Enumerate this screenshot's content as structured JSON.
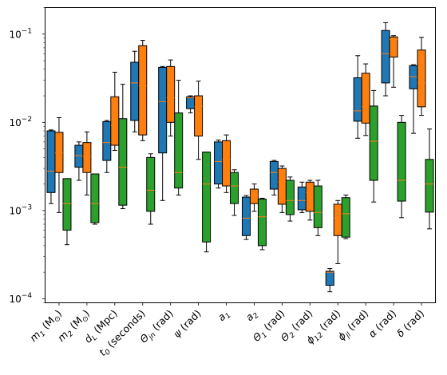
{
  "chart_data": {
    "type": "boxplot",
    "title": "",
    "xlabel": "",
    "ylabel": "",
    "yscale": "log",
    "ylim": [
      9e-05,
      0.2
    ],
    "y_ticks": [
      {
        "value": 0.0001,
        "base": "10",
        "exp": "−4"
      },
      {
        "value": 0.001,
        "base": "10",
        "exp": "−3"
      },
      {
        "value": 0.01,
        "base": "10",
        "exp": "−2"
      },
      {
        "value": 0.1,
        "base": "10",
        "exp": "−1"
      }
    ],
    "categories": [
      "m₁ (M☉)",
      "m₂ (M☉)",
      "d_L (Mpc)",
      "t₀ (seconds)",
      "Θ_jn (rad)",
      "ψ (rad)",
      "a₁",
      "a₂",
      "Θ₁ (rad)",
      "Θ₂ (rad)",
      "ϕ₁₂ (rad)",
      "ϕ_jl (rad)",
      "α (rad)",
      "δ (rad)"
    ],
    "category_labels": [
      {
        "main": "m",
        "sub": "1",
        "tail": " (M",
        "tail_sub": "⊙",
        "end": ")"
      },
      {
        "main": "m",
        "sub": "2",
        "tail": " (M",
        "tail_sub": "⊙",
        "end": ")"
      },
      {
        "main": "d",
        "sub": "L",
        "tail": " (Mpc)",
        "tail_sub": "",
        "end": ""
      },
      {
        "main": "t",
        "sub": "0",
        "tail": " (seconds)",
        "tail_sub": "",
        "end": ""
      },
      {
        "main": "Θ",
        "sub": "jn",
        "tail": " (rad)",
        "tail_sub": "",
        "end": ""
      },
      {
        "main": "ψ",
        "sub": "",
        "tail": " (rad)",
        "tail_sub": "",
        "end": ""
      },
      {
        "main": "a",
        "sub": "1",
        "tail": "",
        "tail_sub": "",
        "end": ""
      },
      {
        "main": "a",
        "sub": "2",
        "tail": "",
        "tail_sub": "",
        "end": ""
      },
      {
        "main": "Θ",
        "sub": "1",
        "tail": " (rad)",
        "tail_sub": "",
        "end": ""
      },
      {
        "main": "Θ",
        "sub": "2",
        "tail": " (rad)",
        "tail_sub": "",
        "end": ""
      },
      {
        "main": "ϕ",
        "sub": "12",
        "tail": " (rad)",
        "tail_sub": "",
        "end": ""
      },
      {
        "main": "ϕ",
        "sub": "jl",
        "tail": " (rad)",
        "tail_sub": "",
        "end": ""
      },
      {
        "main": "α",
        "sub": "",
        "tail": " (rad)",
        "tail_sub": "",
        "end": ""
      },
      {
        "main": "δ",
        "sub": "",
        "tail": " (rad)",
        "tail_sub": "",
        "end": ""
      }
    ],
    "grid": false,
    "legend": "none",
    "median_color": "#ff7f0e",
    "series": [
      {
        "color": "#1f77b4",
        "boxes": [
          {
            "whislo": 0.0012,
            "q1": 0.0016,
            "med": 0.0028,
            "q3": 0.008,
            "whishi": 0.0082
          },
          {
            "whislo": 0.0022,
            "q1": 0.0031,
            "med": 0.0042,
            "q3": 0.0055,
            "whishi": 0.006
          },
          {
            "whislo": 0.0027,
            "q1": 0.0037,
            "med": 0.0059,
            "q3": 0.0102,
            "whishi": 0.0105
          },
          {
            "whislo": 0.0078,
            "q1": 0.0105,
            "med": 0.028,
            "q3": 0.048,
            "whishi": 0.064
          },
          {
            "whislo": 0.0013,
            "q1": 0.0045,
            "med": 0.0172,
            "q3": 0.042,
            "whishi": 0.043
          },
          {
            "whislo": 0.0128,
            "q1": 0.0143,
            "med": 0.019,
            "q3": 0.0195,
            "whishi": 0.02
          },
          {
            "whislo": 0.0018,
            "q1": 0.002,
            "med": 0.0036,
            "q3": 0.006,
            "whishi": 0.0063
          },
          {
            "whislo": 0.00047,
            "q1": 0.00052,
            "med": 0.00082,
            "q3": 0.00142,
            "whishi": 0.00148
          },
          {
            "whislo": 0.0015,
            "q1": 0.00175,
            "med": 0.0027,
            "q3": 0.0036,
            "whishi": 0.0037
          },
          {
            "whislo": 0.00095,
            "q1": 0.00102,
            "med": 0.0013,
            "q3": 0.00185,
            "whishi": 0.0021
          },
          {
            "whislo": 0.00012,
            "q1": 0.000142,
            "med": 0.0002,
            "q3": 0.000205,
            "whishi": 0.00022
          },
          {
            "whislo": 0.0066,
            "q1": 0.0103,
            "med": 0.0135,
            "q3": 0.032,
            "whishi": 0.057
          },
          {
            "whislo": 0.02,
            "q1": 0.028,
            "med": 0.06,
            "q3": 0.11,
            "whishi": 0.135
          },
          {
            "whislo": 0.0075,
            "q1": 0.024,
            "med": 0.033,
            "q3": 0.044,
            "whishi": 0.045
          }
        ]
      },
      {
        "color": "#ff7f0e",
        "boxes": [
          {
            "whislo": 0.00095,
            "q1": 0.0027,
            "med": 0.0045,
            "q3": 0.0077,
            "whishi": 0.0113
          },
          {
            "whislo": 0.0015,
            "q1": 0.0027,
            "med": 0.0041,
            "q3": 0.0059,
            "whishi": 0.0078
          },
          {
            "whislo": 0.0048,
            "q1": 0.0055,
            "med": 0.0092,
            "q3": 0.0195,
            "whishi": 0.037
          },
          {
            "whislo": 0.0062,
            "q1": 0.0072,
            "med": 0.026,
            "q3": 0.074,
            "whishi": 0.085
          },
          {
            "whislo": 0.007,
            "q1": 0.01,
            "med": 0.019,
            "q3": 0.043,
            "whishi": 0.051
          },
          {
            "whislo": 0.0038,
            "q1": 0.007,
            "med": 0.0152,
            "q3": 0.02,
            "whishi": 0.0293
          },
          {
            "whislo": 0.0016,
            "q1": 0.0019,
            "med": 0.0038,
            "q3": 0.0062,
            "whishi": 0.0072
          },
          {
            "whislo": 0.00098,
            "q1": 0.0012,
            "med": 0.00148,
            "q3": 0.00175,
            "whishi": 0.002
          },
          {
            "whislo": 0.00095,
            "q1": 0.00118,
            "med": 0.0021,
            "q3": 0.003,
            "whishi": 0.0032
          },
          {
            "whislo": 0.00078,
            "q1": 0.00098,
            "med": 0.0016,
            "q3": 0.0021,
            "whishi": 0.0022
          },
          {
            "whislo": 0.00025,
            "q1": 0.00052,
            "med": 0.00082,
            "q3": 0.00118,
            "whishi": 0.0013
          },
          {
            "whislo": 0.0071,
            "q1": 0.0098,
            "med": 0.015,
            "q3": 0.036,
            "whishi": 0.046
          },
          {
            "whislo": 0.025,
            "q1": 0.055,
            "med": 0.087,
            "q3": 0.093,
            "whishi": 0.096
          },
          {
            "whislo": 0.012,
            "q1": 0.015,
            "med": 0.028,
            "q3": 0.066,
            "whishi": 0.092
          }
        ]
      },
      {
        "color": "#2ca02c",
        "boxes": [
          {
            "whislo": 0.00041,
            "q1": 0.0006,
            "med": 0.0012,
            "q3": 0.0023,
            "whishi": 0.0023
          },
          {
            "whislo": 0.0007,
            "q1": 0.00073,
            "med": 0.0012,
            "q3": 0.0026,
            "whishi": 0.0026
          },
          {
            "whislo": 0.00105,
            "q1": 0.00115,
            "med": 0.0031,
            "q3": 0.011,
            "whishi": 0.027
          },
          {
            "whislo": 0.0007,
            "q1": 0.00098,
            "med": 0.0017,
            "q3": 0.004,
            "whishi": 0.0044
          },
          {
            "whislo": 0.0015,
            "q1": 0.0018,
            "med": 0.0027,
            "q3": 0.0128,
            "whishi": 0.03
          },
          {
            "whislo": 0.00034,
            "q1": 0.00044,
            "med": 0.002,
            "q3": 0.0046,
            "whishi": 0.0046
          },
          {
            "whislo": 0.00088,
            "q1": 0.0012,
            "med": 0.0019,
            "q3": 0.0027,
            "whishi": 0.0029
          },
          {
            "whislo": 0.00036,
            "q1": 0.0004,
            "med": 0.00085,
            "q3": 0.00135,
            "whishi": 0.00138
          },
          {
            "whislo": 0.00076,
            "q1": 0.0009,
            "med": 0.0013,
            "q3": 0.0022,
            "whishi": 0.0024
          },
          {
            "whislo": 0.00052,
            "q1": 0.00064,
            "med": 0.00095,
            "q3": 0.0019,
            "whishi": 0.0022
          },
          {
            "whislo": 0.00048,
            "q1": 0.0005,
            "med": 0.00092,
            "q3": 0.0014,
            "whishi": 0.0015
          },
          {
            "whislo": 0.00125,
            "q1": 0.0022,
            "med": 0.0061,
            "q3": 0.0153,
            "whishi": 0.023
          },
          {
            "whislo": 0.00083,
            "q1": 0.00128,
            "med": 0.0022,
            "q3": 0.01,
            "whishi": 0.012
          },
          {
            "whislo": 0.00062,
            "q1": 0.00096,
            "med": 0.002,
            "q3": 0.0038,
            "whishi": 0.0084
          }
        ]
      }
    ]
  }
}
